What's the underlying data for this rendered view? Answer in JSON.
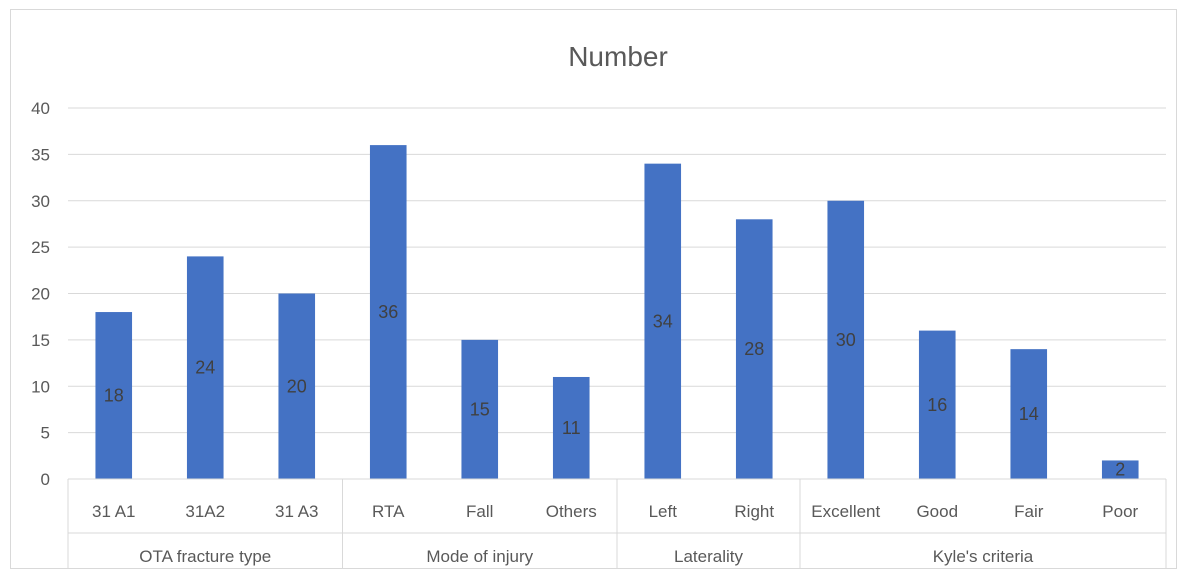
{
  "chart_data": {
    "type": "bar",
    "title": "Number",
    "ylim": [
      0,
      40
    ],
    "yticks": [
      0,
      5,
      10,
      15,
      20,
      25,
      30,
      35,
      40
    ],
    "grid": true,
    "legend": "none",
    "bar_color": "#4472c4",
    "groups": [
      {
        "name": "OTA fracture type",
        "categories": [
          "31 A1",
          "31A2",
          "31 A3"
        ],
        "values": [
          18,
          24,
          20
        ]
      },
      {
        "name": "Mode of injury",
        "categories": [
          "RTA",
          "Fall",
          "Others"
        ],
        "values": [
          36,
          15,
          11
        ]
      },
      {
        "name": "Laterality",
        "categories": [
          "Left",
          "Right"
        ],
        "values": [
          34,
          28
        ]
      },
      {
        "name": "Kyle's criteria",
        "categories": [
          "Excellent",
          "Good",
          "Fair",
          "Poor"
        ],
        "values": [
          30,
          16,
          14,
          2
        ]
      }
    ]
  }
}
